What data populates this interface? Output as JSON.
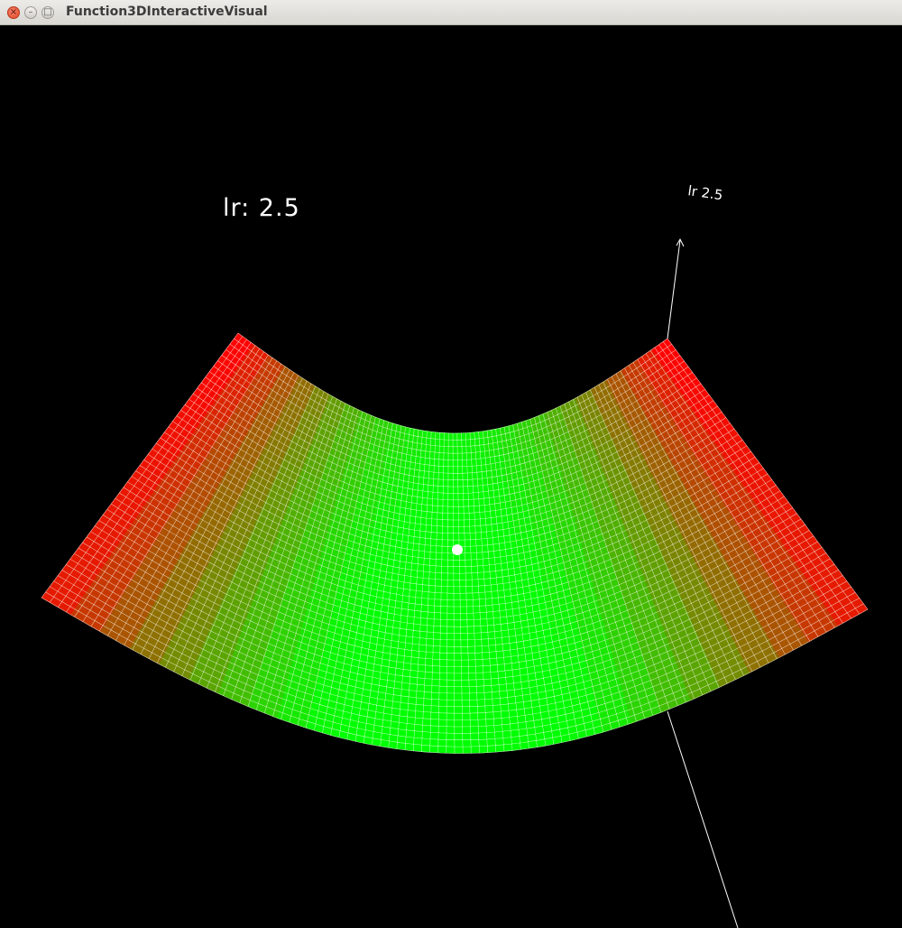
{
  "window": {
    "title": "Function3DInteractiveVisual"
  },
  "viewport": {
    "lr_label": "lr: 2.5",
    "axis_tag": "lr 2.5",
    "colors": {
      "background": "#000000",
      "center": "#00ff00",
      "edge": "#ff0000",
      "grid": "#ffffff",
      "axis": "#ffffff"
    }
  },
  "icons": {
    "close": "close-icon",
    "minimize": "minimize-icon",
    "maximize": "maximize-icon"
  }
}
